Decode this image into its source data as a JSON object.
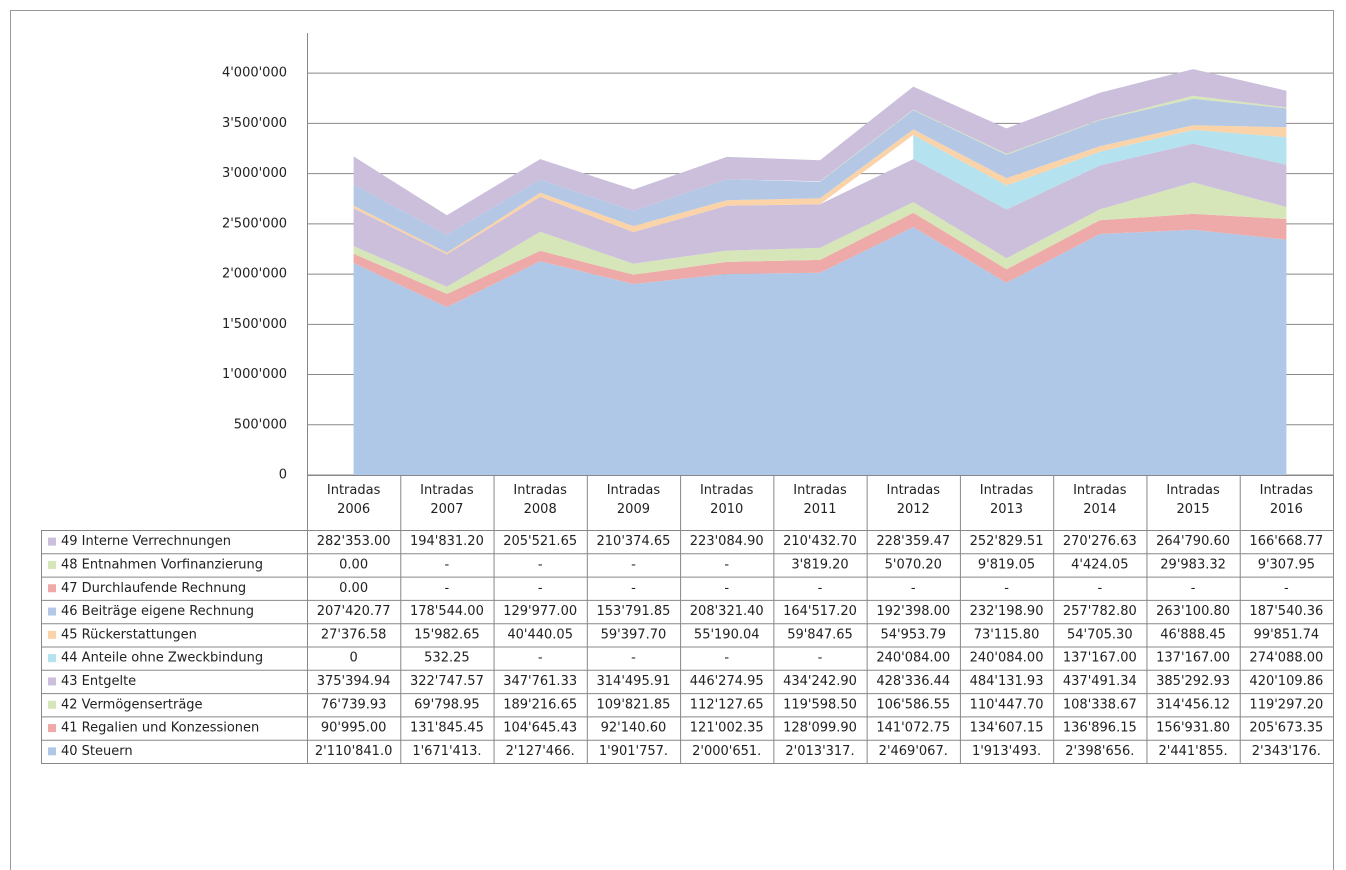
{
  "chart_data": {
    "type": "area",
    "categories": [
      "Intradas 2006",
      "Intradas 2007",
      "Intradas 2008",
      "Intradas 2009",
      "Intradas 2010",
      "Intradas 2011",
      "Intradas 2012",
      "Intradas 2013",
      "Intradas 2014",
      "Intradas 2015",
      "Intradas 2016"
    ],
    "ylim": [
      0,
      4400000
    ],
    "yticks": [
      0,
      {
        "value": 500000,
        "label": "500'000"
      },
      {
        "value": 1000000,
        "label": "1'000'000"
      },
      {
        "value": 1500000,
        "label": "1'500'000"
      },
      {
        "value": 2000000,
        "label": "2'000'000"
      },
      {
        "value": 2500000,
        "label": "2'500'000"
      },
      {
        "value": 3000000,
        "label": "3'000'000"
      },
      {
        "value": 3500000,
        "label": "3'500'000"
      },
      {
        "value": 4000000,
        "label": "4'000'000"
      }
    ],
    "grid": true,
    "stacked": true,
    "series": [
      {
        "name": "40 Steuern",
        "color": "#b0c8e8",
        "values": [
          2110841.0,
          1671413,
          2127466,
          1901757,
          2000651,
          2013317,
          2469067,
          1913493,
          2398656,
          2441855,
          2343176
        ],
        "value_labels": [
          "2'110'841.0",
          "1'671'413.",
          "2'127'466.",
          "1'901'757.",
          "2'000'651.",
          "2'013'317.",
          "2'469'067.",
          "1'913'493.",
          "2'398'656.",
          "2'441'855.",
          "2'343'176."
        ]
      },
      {
        "name": "41 Regalien und Konzessionen",
        "color": "#eeaaa8",
        "values": [
          90995.0,
          131845.45,
          104645.43,
          92140.6,
          121002.35,
          128099.9,
          141072.75,
          134607.15,
          136896.15,
          156931.8,
          205673.35
        ],
        "value_labels": [
          "90'995.00",
          "131'845.45",
          "104'645.43",
          "92'140.60",
          "121'002.35",
          "128'099.90",
          "141'072.75",
          "134'607.15",
          "136'896.15",
          "156'931.80",
          "205'673.35"
        ]
      },
      {
        "name": "42 Vermögenserträge",
        "color": "#d6e6b8",
        "values": [
          76739.93,
          69798.95,
          189216.65,
          109821.85,
          112127.65,
          119598.5,
          106586.55,
          110447.7,
          108338.67,
          314456.12,
          119297.2
        ],
        "value_labels": [
          "76'739.93",
          "69'798.95",
          "189'216.65",
          "109'821.85",
          "112'127.65",
          "119'598.50",
          "106'586.55",
          "110'447.70",
          "108'338.67",
          "314'456.12",
          "119'297.20"
        ]
      },
      {
        "name": "43 Entgelte",
        "color": "#cbbfdc",
        "values": [
          375394.94,
          322747.57,
          347761.33,
          314495.91,
          446274.95,
          434242.9,
          428336.44,
          484131.93,
          437491.34,
          385292.93,
          420109.86
        ],
        "value_labels": [
          "375'394.94",
          "322'747.57",
          "347'761.33",
          "314'495.91",
          "446'274.95",
          "434'242.90",
          "428'336.44",
          "484'131.93",
          "437'491.34",
          "385'292.93",
          "420'109.86"
        ]
      },
      {
        "name": "44 Anteile ohne Zweckbindung",
        "color": "#b4e2ee",
        "values": [
          0,
          532.25,
          null,
          null,
          null,
          null,
          240084.0,
          240084.0,
          137167.0,
          137167.0,
          274088.0
        ],
        "value_labels": [
          "0",
          "532.25",
          "-",
          "-",
          "-",
          "-",
          "240'084.00",
          "240'084.00",
          "137'167.00",
          "137'167.00",
          "274'088.00"
        ]
      },
      {
        "name": "45 Rückerstattungen",
        "color": "#fbd3a8",
        "values": [
          27376.58,
          15982.65,
          40440.05,
          59397.7,
          55190.04,
          59847.65,
          54953.79,
          73115.8,
          54705.3,
          46888.45,
          99851.74
        ],
        "value_labels": [
          "27'376.58",
          "15'982.65",
          "40'440.05",
          "59'397.70",
          "55'190.04",
          "59'847.65",
          "54'953.79",
          "73'115.80",
          "54'705.30",
          "46'888.45",
          "99'851.74"
        ]
      },
      {
        "name": "46 Beiträge eigene Rechnung",
        "color": "#b4c8e6",
        "values": [
          207420.77,
          178544.0,
          129977.0,
          153791.85,
          208321.4,
          164517.2,
          192398.0,
          232198.9,
          257782.8,
          263100.8,
          187540.36
        ],
        "value_labels": [
          "207'420.77",
          "178'544.00",
          "129'977.00",
          "153'791.85",
          "208'321.40",
          "164'517.20",
          "192'398.00",
          "232'198.90",
          "257'782.80",
          "263'100.80",
          "187'540.36"
        ]
      },
      {
        "name": "47 Durchlaufende Rechnung",
        "color": "#eeaaa8",
        "values": [
          0,
          null,
          null,
          null,
          null,
          null,
          null,
          null,
          null,
          null,
          null
        ],
        "value_labels": [
          "0.00",
          "-",
          "-",
          "-",
          "-",
          "-",
          "-",
          "-",
          "-",
          "-",
          "-"
        ]
      },
      {
        "name": "48 Entnahmen Vorfinanzierung",
        "color": "#d6e6b8",
        "values": [
          0,
          null,
          null,
          null,
          null,
          3819.2,
          5070.2,
          9819.05,
          4424.05,
          29983.32,
          9307.95
        ],
        "value_labels": [
          "0.00",
          "-",
          "-",
          "-",
          "-",
          "3'819.20",
          "5'070.20",
          "9'819.05",
          "4'424.05",
          "29'983.32",
          "9'307.95"
        ]
      },
      {
        "name": "49 Interne Verrechnungen",
        "color": "#cbbfdc",
        "values": [
          282353.0,
          194831.2,
          205521.65,
          210374.65,
          223084.9,
          210432.7,
          228359.47,
          252829.51,
          270276.63,
          264790.6,
          166668.77
        ],
        "value_labels": [
          "282'353.00",
          "194'831.20",
          "205'521.65",
          "210'374.65",
          "223'084.90",
          "210'432.70",
          "228'359.47",
          "252'829.51",
          "270'276.63",
          "264'790.60",
          "166'668.77"
        ]
      }
    ]
  }
}
